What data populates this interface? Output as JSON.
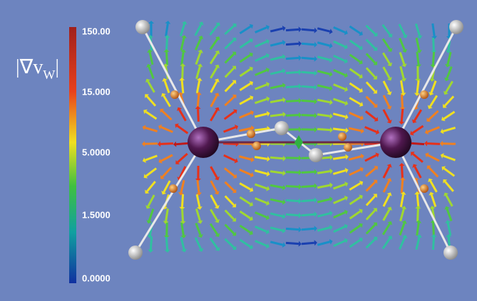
{
  "colorbar": {
    "title": {
      "symbol": "|∇v",
      "subscript": "W",
      "closing": "|"
    },
    "ticks": [
      "150.00",
      "15.000",
      "5.0000",
      "1.5000",
      "0.0000"
    ]
  }
}
